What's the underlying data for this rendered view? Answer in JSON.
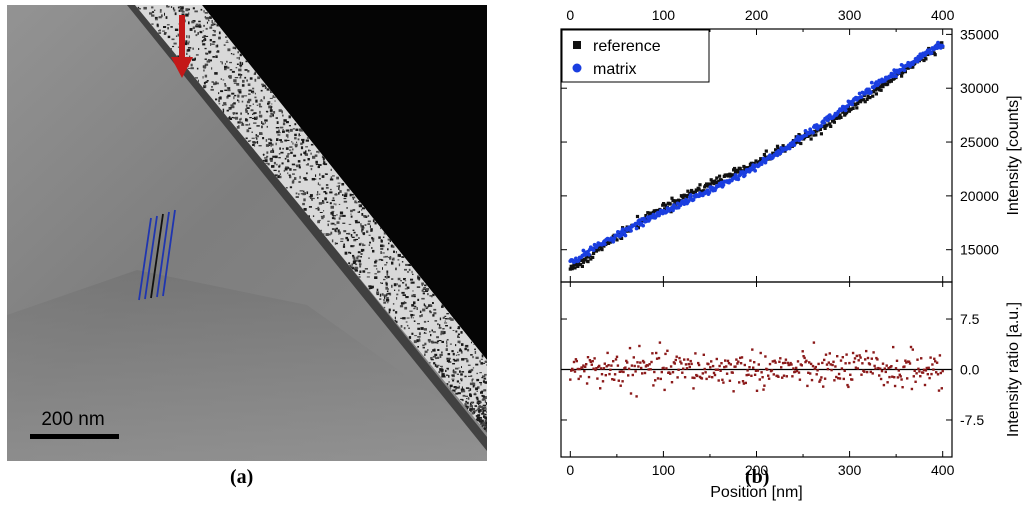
{
  "panel_a": {
    "scale_bar_label": "200 nm",
    "caption": "(a)",
    "colors": {
      "arrow": "#c41818",
      "line_blue": "#1f35b0",
      "line_black": "#111111"
    },
    "icons": [
      "red-arrow-icon"
    ]
  },
  "panel_b": {
    "caption": "(b)"
  },
  "chart_data": [
    {
      "type": "scatter",
      "title": "",
      "xlabel": "",
      "x2label": "",
      "ylabel": "Intensity [counts]",
      "xlim": [
        -10,
        410
      ],
      "ylim": [
        12000,
        35500
      ],
      "x_ticks": [
        0,
        100,
        200,
        300,
        400
      ],
      "y_ticks": [
        15000,
        20000,
        25000,
        30000,
        35000
      ],
      "y_axis_side": "right",
      "top_axis_ticks_labeled": true,
      "grid": false,
      "legend": {
        "placement": "top-left",
        "entries": [
          "reference",
          "matrix"
        ]
      },
      "series": [
        {
          "name": "reference",
          "marker": "square",
          "color": "#111111",
          "x_range": [
            0,
            400
          ],
          "y_start": 13200,
          "y_end": 33600,
          "points": 400
        },
        {
          "name": "matrix",
          "marker": "circle",
          "color": "#1a3ee0",
          "x_range": [
            0,
            400
          ],
          "y_start": 13250,
          "y_end": 33500,
          "points": 400
        }
      ]
    },
    {
      "type": "scatter",
      "xlabel": "Position [nm]",
      "ylabel": "Intensity ratio [a.u.]",
      "xlim": [
        -10,
        410
      ],
      "ylim": [
        -13,
        13
      ],
      "x_ticks": [
        0,
        100,
        200,
        300,
        400
      ],
      "y_ticks": [
        7.5,
        0.0,
        -7.5
      ],
      "y_tick_labels": [
        "7.5",
        "0.0",
        "-7.5"
      ],
      "y_axis_side": "right",
      "reference_line_y": 0,
      "grid": false,
      "series": [
        {
          "marker": "square",
          "color": "#8b1a1a",
          "x_range": [
            0,
            400
          ],
          "mean": 0,
          "spread": 4,
          "points": 400
        }
      ]
    }
  ]
}
